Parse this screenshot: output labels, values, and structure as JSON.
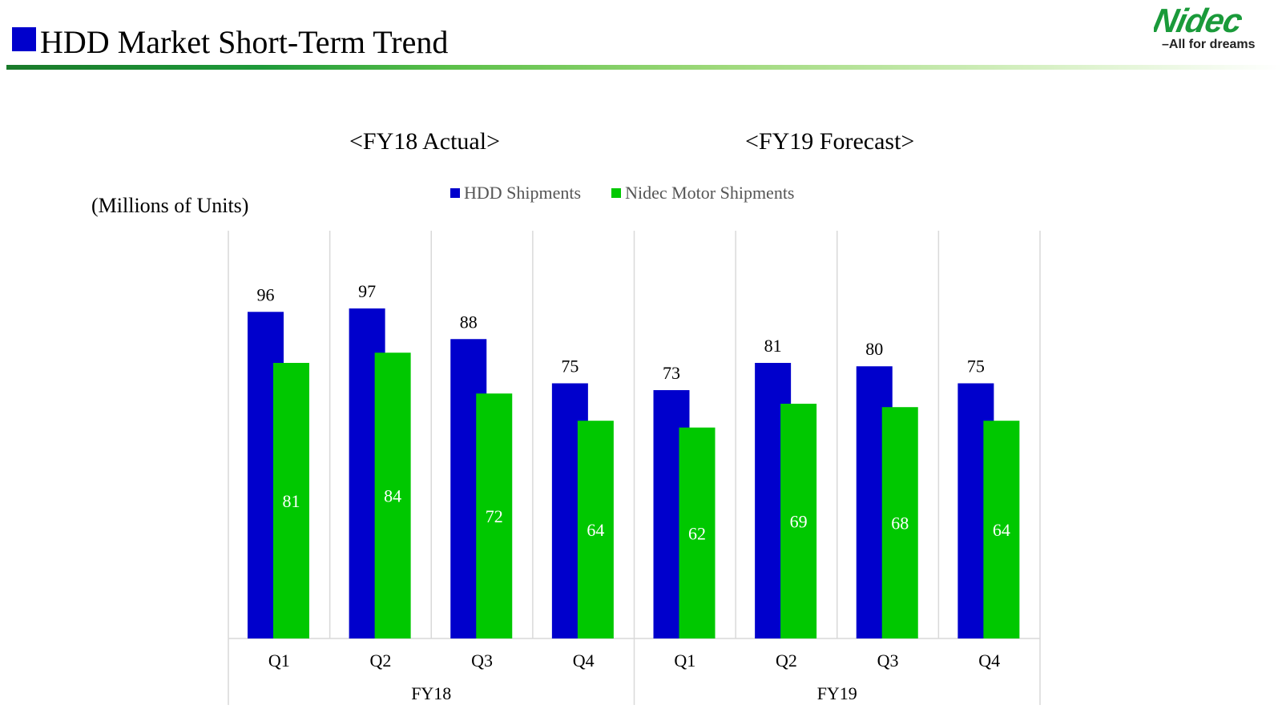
{
  "header": {
    "title": "HDD Market Short-Term Trend",
    "logo_text": "Nidec",
    "logo_tagline": "–All for dreams"
  },
  "section_labels": {
    "left": "<FY18 Actual>",
    "right": "<FY19 Forecast>"
  },
  "colors": {
    "hdd": "#0000cc",
    "nidec": "#00c800",
    "title_square": "#0000cc",
    "gridline": "#d9d9d9"
  },
  "chart_data": {
    "type": "bar",
    "title": "",
    "ylabel": "(Millions of Units)",
    "xlabel": "",
    "ylim": [
      0,
      120
    ],
    "grid": "vertical category separators",
    "legend": "top-center",
    "legend_entries": [
      "HDD Shipments",
      "Nidec Motor Shipments"
    ],
    "categories": [
      "Q1",
      "Q2",
      "Q3",
      "Q4",
      "Q1",
      "Q2",
      "Q3",
      "Q4"
    ],
    "groups": [
      {
        "label": "FY18",
        "start": 0,
        "count": 4
      },
      {
        "label": "FY19",
        "start": 4,
        "count": 4
      }
    ],
    "series": [
      {
        "name": "HDD Shipments",
        "values": [
          96,
          97,
          88,
          75,
          73,
          81,
          80,
          75
        ],
        "label_position": "above",
        "label_color": "#000000"
      },
      {
        "name": "Nidec Motor Shipments",
        "values": [
          81,
          84,
          72,
          64,
          62,
          69,
          68,
          64
        ],
        "label_position": "inside",
        "label_color": "#ffffff"
      }
    ]
  }
}
